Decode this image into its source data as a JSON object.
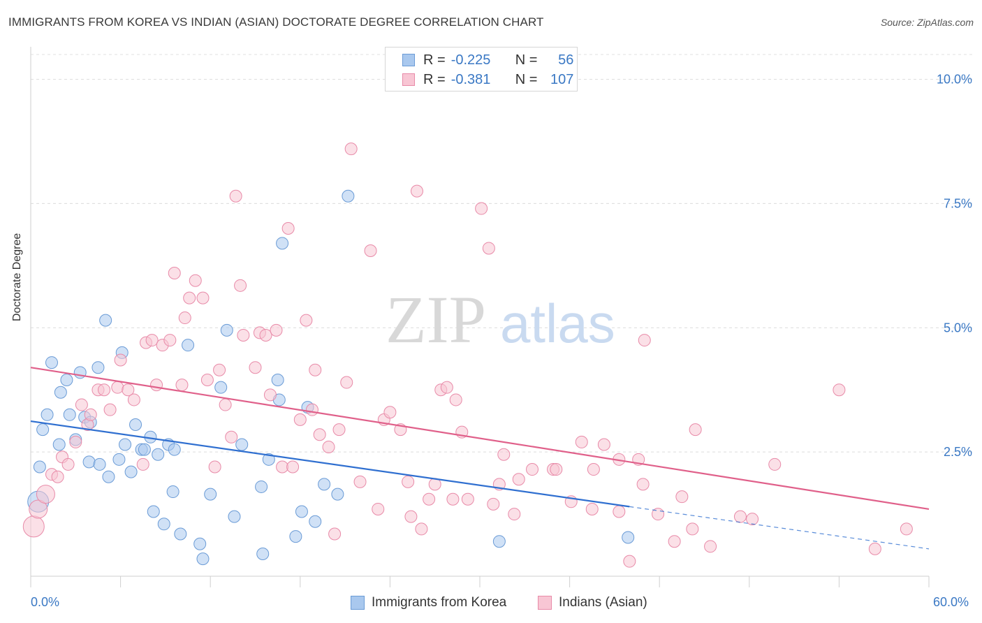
{
  "title": "IMMIGRANTS FROM KOREA VS INDIAN (ASIAN) DOCTORATE DEGREE CORRELATION CHART",
  "source": "Source: ZipAtlas.com",
  "watermark": {
    "zip": "ZIP",
    "atlas": "atlas"
  },
  "legend_top": {
    "r_label": "R =",
    "n_label": "N =",
    "rows": [
      {
        "r": "-0.225",
        "n": "56",
        "color": "#a9c8ee",
        "border": "#6a9bd6"
      },
      {
        "r": "-0.381",
        "n": "107",
        "color": "#f8c6d4",
        "border": "#e88aa8"
      }
    ]
  },
  "x_min_label": "0.0%",
  "x_max_label": "60.0%",
  "chart_data": {
    "type": "scatter",
    "title": "IMMIGRANTS FROM KOREA VS INDIAN (ASIAN) DOCTORATE DEGREE CORRELATION CHART",
    "xlabel": "",
    "ylabel": "Doctorate Degree",
    "xlim": [
      0,
      60
    ],
    "ylim": [
      0,
      10.5
    ],
    "x_tick_labels": [
      "0.0%",
      "60.0%"
    ],
    "y_ticks": [
      2.5,
      5.0,
      7.5,
      10.0
    ],
    "y_tick_labels": [
      "2.5%",
      "5.0%",
      "7.5%",
      "10.0%"
    ],
    "grid": true,
    "legend_position": "bottom",
    "series": [
      {
        "name": "Immigrants from Korea",
        "color": "#a9c8ee",
        "stroke": "#6a9bd6",
        "line_color": "#2f6fd0",
        "trend": {
          "x0": 0,
          "y0": 3.12,
          "x1": 40,
          "y1": 1.4,
          "dash_to_x": 60,
          "dash_to_y": 0.55
        },
        "points": [
          [
            0.5,
            1.5
          ],
          [
            0.6,
            2.2
          ],
          [
            0.8,
            2.95
          ],
          [
            1.1,
            3.25
          ],
          [
            1.4,
            4.3
          ],
          [
            2.0,
            3.7
          ],
          [
            2.4,
            3.95
          ],
          [
            1.9,
            2.65
          ],
          [
            2.6,
            3.25
          ],
          [
            3.0,
            2.75
          ],
          [
            3.3,
            4.1
          ],
          [
            3.6,
            3.2
          ],
          [
            4.0,
            3.1
          ],
          [
            3.9,
            2.3
          ],
          [
            4.6,
            2.25
          ],
          [
            4.5,
            4.2
          ],
          [
            5.0,
            5.15
          ],
          [
            5.2,
            2.0
          ],
          [
            5.9,
            2.35
          ],
          [
            6.1,
            4.5
          ],
          [
            6.3,
            2.65
          ],
          [
            6.7,
            2.1
          ],
          [
            7.0,
            3.05
          ],
          [
            7.4,
            2.55
          ],
          [
            7.6,
            2.55
          ],
          [
            8.0,
            2.8
          ],
          [
            8.5,
            2.45
          ],
          [
            9.2,
            2.65
          ],
          [
            9.6,
            2.55
          ],
          [
            8.2,
            1.3
          ],
          [
            8.9,
            1.05
          ],
          [
            9.5,
            1.7
          ],
          [
            10.0,
            0.85
          ],
          [
            10.5,
            4.65
          ],
          [
            11.3,
            0.65
          ],
          [
            11.5,
            0.35
          ],
          [
            12.0,
            1.65
          ],
          [
            12.7,
            3.8
          ],
          [
            13.1,
            4.95
          ],
          [
            13.6,
            1.2
          ],
          [
            14.1,
            2.65
          ],
          [
            15.4,
            1.8
          ],
          [
            15.5,
            0.45
          ],
          [
            15.9,
            2.35
          ],
          [
            16.5,
            3.95
          ],
          [
            16.6,
            3.55
          ],
          [
            16.8,
            6.7
          ],
          [
            17.7,
            0.8
          ],
          [
            18.1,
            1.3
          ],
          [
            18.5,
            3.4
          ],
          [
            19.0,
            1.1
          ],
          [
            19.6,
            1.85
          ],
          [
            20.5,
            1.65
          ],
          [
            21.2,
            7.65
          ],
          [
            31.3,
            0.7
          ],
          [
            39.9,
            0.78
          ]
        ]
      },
      {
        "name": "Indians (Asian)",
        "color": "#f8c6d4",
        "stroke": "#e88aa8",
        "line_color": "#e0608a",
        "trend": {
          "x0": 0,
          "y0": 4.2,
          "x1": 60,
          "y1": 1.35
        },
        "points": [
          [
            0.2,
            1.0
          ],
          [
            0.5,
            1.35
          ],
          [
            1.0,
            1.65
          ],
          [
            1.4,
            2.05
          ],
          [
            1.8,
            2.0
          ],
          [
            2.1,
            2.4
          ],
          [
            2.5,
            2.25
          ],
          [
            3.0,
            2.7
          ],
          [
            3.4,
            3.45
          ],
          [
            3.8,
            3.05
          ],
          [
            4.0,
            3.25
          ],
          [
            4.5,
            3.75
          ],
          [
            4.9,
            3.75
          ],
          [
            5.3,
            3.35
          ],
          [
            5.8,
            3.8
          ],
          [
            6.0,
            4.35
          ],
          [
            6.5,
            3.75
          ],
          [
            6.9,
            3.55
          ],
          [
            7.5,
            2.25
          ],
          [
            7.7,
            4.7
          ],
          [
            8.1,
            4.75
          ],
          [
            8.4,
            3.85
          ],
          [
            8.8,
            4.65
          ],
          [
            9.3,
            4.75
          ],
          [
            9.6,
            6.1
          ],
          [
            10.1,
            3.85
          ],
          [
            10.3,
            5.2
          ],
          [
            10.6,
            5.6
          ],
          [
            11.0,
            5.95
          ],
          [
            11.5,
            5.6
          ],
          [
            11.8,
            3.95
          ],
          [
            12.3,
            2.2
          ],
          [
            12.6,
            4.15
          ],
          [
            13.0,
            3.45
          ],
          [
            13.7,
            7.65
          ],
          [
            13.4,
            2.8
          ],
          [
            14.0,
            5.85
          ],
          [
            14.2,
            4.85
          ],
          [
            15.0,
            4.2
          ],
          [
            15.3,
            4.9
          ],
          [
            15.7,
            4.85
          ],
          [
            16.0,
            3.65
          ],
          [
            16.4,
            4.95
          ],
          [
            16.8,
            2.2
          ],
          [
            17.2,
            7.0
          ],
          [
            17.5,
            2.2
          ],
          [
            18.0,
            3.15
          ],
          [
            18.4,
            5.15
          ],
          [
            18.8,
            3.35
          ],
          [
            19.0,
            4.15
          ],
          [
            19.3,
            2.85
          ],
          [
            19.9,
            2.6
          ],
          [
            20.3,
            0.85
          ],
          [
            20.6,
            2.95
          ],
          [
            21.1,
            3.9
          ],
          [
            21.4,
            8.6
          ],
          [
            22.0,
            1.9
          ],
          [
            22.7,
            6.55
          ],
          [
            23.2,
            1.35
          ],
          [
            23.6,
            3.15
          ],
          [
            24.0,
            3.3
          ],
          [
            24.7,
            2.95
          ],
          [
            25.2,
            1.9
          ],
          [
            25.4,
            1.2
          ],
          [
            25.8,
            7.75
          ],
          [
            26.1,
            0.95
          ],
          [
            26.6,
            1.55
          ],
          [
            27.0,
            1.85
          ],
          [
            27.4,
            3.75
          ],
          [
            27.8,
            3.8
          ],
          [
            28.2,
            1.55
          ],
          [
            28.4,
            3.55
          ],
          [
            28.8,
            2.9
          ],
          [
            29.2,
            1.55
          ],
          [
            30.1,
            7.4
          ],
          [
            30.6,
            6.6
          ],
          [
            30.9,
            1.45
          ],
          [
            31.3,
            1.85
          ],
          [
            31.6,
            2.45
          ],
          [
            32.3,
            1.25
          ],
          [
            32.6,
            1.95
          ],
          [
            33.5,
            2.15
          ],
          [
            34.9,
            2.15
          ],
          [
            35.1,
            2.15
          ],
          [
            36.1,
            1.5
          ],
          [
            36.8,
            2.7
          ],
          [
            37.5,
            1.35
          ],
          [
            37.6,
            2.15
          ],
          [
            38.3,
            2.65
          ],
          [
            39.3,
            2.35
          ],
          [
            39.3,
            1.3
          ],
          [
            40.0,
            0.3
          ],
          [
            40.6,
            2.35
          ],
          [
            40.9,
            1.85
          ],
          [
            41.0,
            4.75
          ],
          [
            41.9,
            1.25
          ],
          [
            43.0,
            0.7
          ],
          [
            43.5,
            1.6
          ],
          [
            44.2,
            0.95
          ],
          [
            44.4,
            2.95
          ],
          [
            45.4,
            0.6
          ],
          [
            47.4,
            1.2
          ],
          [
            48.2,
            1.15
          ],
          [
            49.7,
            2.25
          ],
          [
            54.0,
            3.75
          ],
          [
            56.4,
            0.55
          ],
          [
            58.5,
            0.95
          ]
        ]
      }
    ]
  }
}
